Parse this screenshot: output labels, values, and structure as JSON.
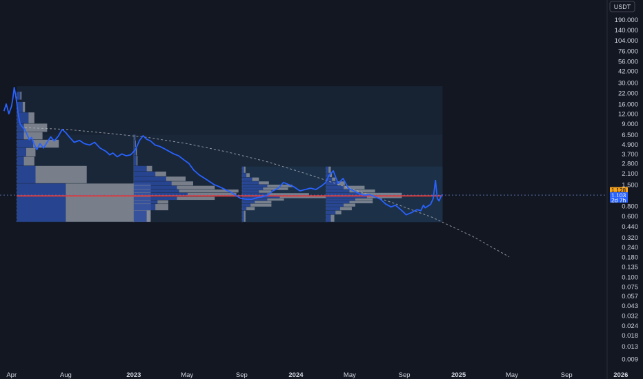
{
  "colors": {
    "background": "#131722",
    "price_line": "#2962ff",
    "last_price_badge": "#f7a21b",
    "second_badge": "#2962ff",
    "vp_up": "#2a4aa0",
    "vp_down": "#8a8f9a",
    "poc_line": "#e53935",
    "zone_fill": "#1f3b57",
    "zone_fill_dark": "#1b2b3f",
    "trend_curve": "#b2b5be",
    "crosshair_h": "#5b6fa8"
  },
  "chart_data": {
    "type": "line",
    "title": "",
    "xlabel": "",
    "ylabel": "",
    "currency_label": "USDT",
    "y_scale": "log",
    "ylim": [
      0.0078,
      300
    ],
    "xlim": [
      "2022-03-06",
      "2026-02-20"
    ],
    "grid": false,
    "y_ticks": [
      "190.000",
      "140.000",
      "104.000",
      "76.000",
      "56.000",
      "42.000",
      "30.000",
      "22.000",
      "16.000",
      "12.000",
      "9.000",
      "6.500",
      "4.900",
      "3.700",
      "2.800",
      "2.100",
      "1.500",
      "0.800",
      "0.600",
      "0.440",
      "0.320",
      "0.240",
      "0.180",
      "0.135",
      "0.100",
      "0.075",
      "0.057",
      "0.043",
      "0.032",
      "0.024",
      "0.018",
      "0.013",
      "0.009"
    ],
    "x_ticks": [
      {
        "label": "Apr",
        "date": "2022-04-01",
        "bold": false
      },
      {
        "label": "Aug",
        "date": "2022-08-01",
        "bold": false
      },
      {
        "label": "2023",
        "date": "2023-01-01",
        "bold": true
      },
      {
        "label": "May",
        "date": "2023-05-01",
        "bold": false
      },
      {
        "label": "Sep",
        "date": "2023-09-01",
        "bold": false
      },
      {
        "label": "2024",
        "date": "2024-01-01",
        "bold": true
      },
      {
        "label": "May",
        "date": "2024-05-01",
        "bold": false
      },
      {
        "label": "Sep",
        "date": "2024-09-01",
        "bold": false
      },
      {
        "label": "2025",
        "date": "2025-01-01",
        "bold": true
      },
      {
        "label": "May",
        "date": "2025-05-01",
        "bold": false
      },
      {
        "label": "Sep",
        "date": "2025-09-01",
        "bold": false
      },
      {
        "label": "2026",
        "date": "2026-01-01",
        "bold": true
      }
    ],
    "price_badges": [
      {
        "label": "1.128",
        "value": 1.128,
        "color": "#f7a21b"
      },
      {
        "label": "1.103",
        "value": 1.103,
        "color": "#2962ff"
      },
      {
        "label": "2d 7h",
        "value": 1.04,
        "color": "#2962ff"
      }
    ],
    "series": [
      {
        "x": [
          "2022-03-15",
          "2022-03-20",
          "2022-03-26",
          "2022-04-01",
          "2022-04-04",
          "2022-04-07",
          "2022-04-10",
          "2022-04-13",
          "2022-04-16",
          "2022-04-20",
          "2022-04-25",
          "2022-05-01",
          "2022-05-06",
          "2022-05-11",
          "2022-05-16",
          "2022-05-22",
          "2022-05-28",
          "2022-06-04",
          "2022-06-12",
          "2022-06-20",
          "2022-06-28",
          "2022-07-06",
          "2022-07-15",
          "2022-07-24",
          "2022-08-01",
          "2022-08-10",
          "2022-08-20",
          "2022-09-01",
          "2022-09-12",
          "2022-09-24",
          "2022-10-05",
          "2022-10-17",
          "2022-10-30",
          "2022-11-08",
          "2022-11-15",
          "2022-11-25",
          "2022-12-05",
          "2022-12-15",
          "2022-12-25",
          "2023-01-05",
          "2023-01-14",
          "2023-01-22",
          "2023-01-30",
          "2023-02-08",
          "2023-02-18",
          "2023-03-01",
          "2023-03-11",
          "2023-03-21",
          "2023-04-01",
          "2023-04-12",
          "2023-04-24",
          "2023-05-05",
          "2023-05-16",
          "2023-05-28",
          "2023-06-10",
          "2023-06-20",
          "2023-07-01",
          "2023-07-14",
          "2023-07-26",
          "2023-08-08",
          "2023-08-18",
          "2023-08-30",
          "2023-09-12",
          "2023-09-24",
          "2023-10-05",
          "2023-10-17",
          "2023-10-29",
          "2023-11-10",
          "2023-11-22",
          "2023-12-04",
          "2023-12-16",
          "2023-12-28",
          "2024-01-10",
          "2024-01-22",
          "2024-02-03",
          "2024-02-15",
          "2024-02-28",
          "2024-03-08",
          "2024-03-15",
          "2024-03-25",
          "2024-04-05",
          "2024-04-16",
          "2024-04-28",
          "2024-05-10",
          "2024-05-22",
          "2024-06-03",
          "2024-06-15",
          "2024-06-27",
          "2024-07-09",
          "2024-07-21",
          "2024-08-02",
          "2024-08-12",
          "2024-08-24",
          "2024-09-05",
          "2024-09-17",
          "2024-09-29",
          "2024-10-08",
          "2024-10-14",
          "2024-10-18",
          "2024-10-24",
          "2024-10-30",
          "2024-11-05",
          "2024-11-10",
          "2024-11-14",
          "2024-11-18",
          "2024-11-22",
          "2024-11-26"
        ],
        "values": [
          13,
          16,
          12,
          15,
          19,
          26,
          21,
          16,
          12,
          9,
          8.2,
          7.5,
          6.5,
          5.6,
          6.0,
          4.9,
          4.2,
          5.0,
          4.4,
          5.2,
          6.1,
          5.4,
          6.2,
          7.6,
          6.9,
          6.0,
          5.2,
          5.5,
          5.0,
          4.8,
          5.2,
          4.4,
          4.0,
          3.6,
          3.8,
          3.4,
          3.7,
          3.5,
          3.6,
          4.2,
          5.5,
          6.3,
          5.7,
          5.4,
          4.8,
          4.6,
          4.3,
          4.0,
          3.7,
          3.5,
          3.1,
          2.8,
          2.3,
          2.0,
          1.8,
          1.65,
          1.5,
          1.4,
          1.3,
          1.2,
          1.1,
          1.0,
          0.98,
          0.98,
          1.02,
          1.05,
          1.1,
          1.25,
          1.35,
          1.6,
          1.5,
          1.4,
          1.25,
          1.3,
          1.35,
          1.3,
          1.45,
          1.6,
          1.95,
          2.25,
          1.55,
          1.8,
          1.35,
          1.25,
          1.15,
          1.1,
          1.12,
          1.05,
          0.98,
          0.85,
          0.78,
          0.82,
          0.72,
          0.62,
          0.66,
          0.72,
          0.7,
          0.82,
          0.76,
          0.8,
          0.84,
          1.0,
          1.7,
          1.0,
          0.93,
          1.05,
          1.128
        ]
      }
    ],
    "trend_curve": {
      "x": [
        "2022-05-01",
        "2022-08-01",
        "2022-11-01",
        "2023-02-01",
        "2023-05-01",
        "2023-08-01",
        "2023-11-01",
        "2024-02-01",
        "2024-05-01",
        "2024-08-01",
        "2024-11-01",
        "2025-02-01",
        "2025-04-25"
      ],
      "values": [
        8.0,
        7.6,
        6.8,
        6.0,
        5.0,
        3.9,
        2.9,
        2.0,
        1.35,
        0.9,
        0.58,
        0.33,
        0.18
      ]
    },
    "zones": [
      {
        "start": "2022-04-13",
        "end": "2024-11-26",
        "high": 27,
        "low": 0.5
      },
      {
        "start": "2022-04-13",
        "end": "2024-11-26",
        "high": 6.5,
        "low": 0.5
      },
      {
        "start": "2023-09-02",
        "end": "2024-11-26",
        "high": 2.55,
        "low": 0.5
      }
    ],
    "volume_profiles": [
      {
        "start": "2022-04-13",
        "end": "2022-12-31",
        "rows": [
          [
            23,
            18,
            0.03,
            0.01
          ],
          [
            17,
            12.5,
            0.05,
            0.02
          ],
          [
            12.5,
            9,
            0.1,
            0.05
          ],
          [
            9,
            7,
            0.06,
            0.2
          ],
          [
            7,
            5.6,
            0.06,
            0.16
          ],
          [
            5.6,
            4.4,
            0.14,
            0.22
          ],
          [
            4.4,
            3.4,
            0.08,
            0.08
          ],
          [
            3.4,
            2.6,
            0.06,
            0.09
          ],
          [
            2.6,
            1.55,
            0.16,
            0.44
          ],
          [
            1.55,
            0.5,
            0.42,
            0.73
          ]
        ]
      },
      {
        "start": "2023-01-01",
        "end": "2023-09-01",
        "rows": [
          [
            6.5,
            5.5,
            0.01,
            0.005
          ],
          [
            5.5,
            4.5,
            0.015,
            0.005
          ],
          [
            4.5,
            3.5,
            0.02,
            0.01
          ],
          [
            3.5,
            2.6,
            0.025,
            0.01
          ],
          [
            2.6,
            2.2,
            0.12,
            0.05
          ],
          [
            2.2,
            1.9,
            0.2,
            0.1
          ],
          [
            1.9,
            1.65,
            0.3,
            0.18
          ],
          [
            1.65,
            1.45,
            0.35,
            0.2
          ],
          [
            1.45,
            1.3,
            0.4,
            0.35
          ],
          [
            1.3,
            1.18,
            0.42,
            0.55
          ],
          [
            1.18,
            1.05,
            0.5,
            0.45
          ],
          [
            1.05,
            0.95,
            0.4,
            0.35
          ],
          [
            0.95,
            0.85,
            0.22,
            0.1
          ],
          [
            0.85,
            0.7,
            0.2,
            0.12
          ],
          [
            0.7,
            0.5,
            0.12,
            0.03
          ]
        ]
      },
      {
        "start": "2023-09-02",
        "end": "2024-03-08",
        "rows": [
          [
            2.55,
            2.1,
            0.02,
            0.02
          ],
          [
            2.1,
            1.85,
            0.05,
            0.04
          ],
          [
            1.85,
            1.65,
            0.12,
            0.08
          ],
          [
            1.65,
            1.5,
            0.2,
            0.12
          ],
          [
            1.5,
            1.38,
            0.3,
            0.3
          ],
          [
            1.38,
            1.27,
            0.25,
            0.3
          ],
          [
            1.27,
            1.17,
            0.2,
            0.15
          ],
          [
            1.17,
            1.08,
            0.3,
            0.5
          ],
          [
            1.08,
            1.0,
            0.45,
            0.55
          ],
          [
            1.0,
            0.93,
            0.3,
            0.2
          ],
          [
            0.93,
            0.86,
            0.15,
            0.2
          ],
          [
            0.86,
            0.78,
            0.1,
            0.25
          ],
          [
            0.78,
            0.7,
            0.05,
            0.1
          ],
          [
            0.7,
            0.5,
            0.02,
            0.02
          ]
        ]
      },
      {
        "start": "2024-03-09",
        "end": "2024-11-26",
        "rows": [
          [
            2.55,
            2.1,
            0.02,
            0.02
          ],
          [
            2.1,
            1.85,
            0.03,
            0.02
          ],
          [
            1.85,
            1.65,
            0.05,
            0.03
          ],
          [
            1.65,
            1.45,
            0.1,
            0.06
          ],
          [
            1.45,
            1.3,
            0.15,
            0.18
          ],
          [
            1.3,
            1.18,
            0.2,
            0.22
          ],
          [
            1.18,
            1.08,
            0.3,
            0.35
          ],
          [
            1.08,
            1.0,
            0.35,
            0.3
          ],
          [
            1.0,
            0.93,
            0.25,
            0.15
          ],
          [
            0.93,
            0.86,
            0.2,
            0.2
          ],
          [
            0.86,
            0.78,
            0.15,
            0.1
          ],
          [
            0.78,
            0.7,
            0.12,
            0.1
          ],
          [
            0.7,
            0.62,
            0.08,
            0.05
          ],
          [
            0.62,
            0.5,
            0.04,
            0.03
          ]
        ]
      }
    ],
    "poc_line": {
      "start": "2022-04-13",
      "end": "2024-11-26",
      "value": 1.08
    }
  }
}
